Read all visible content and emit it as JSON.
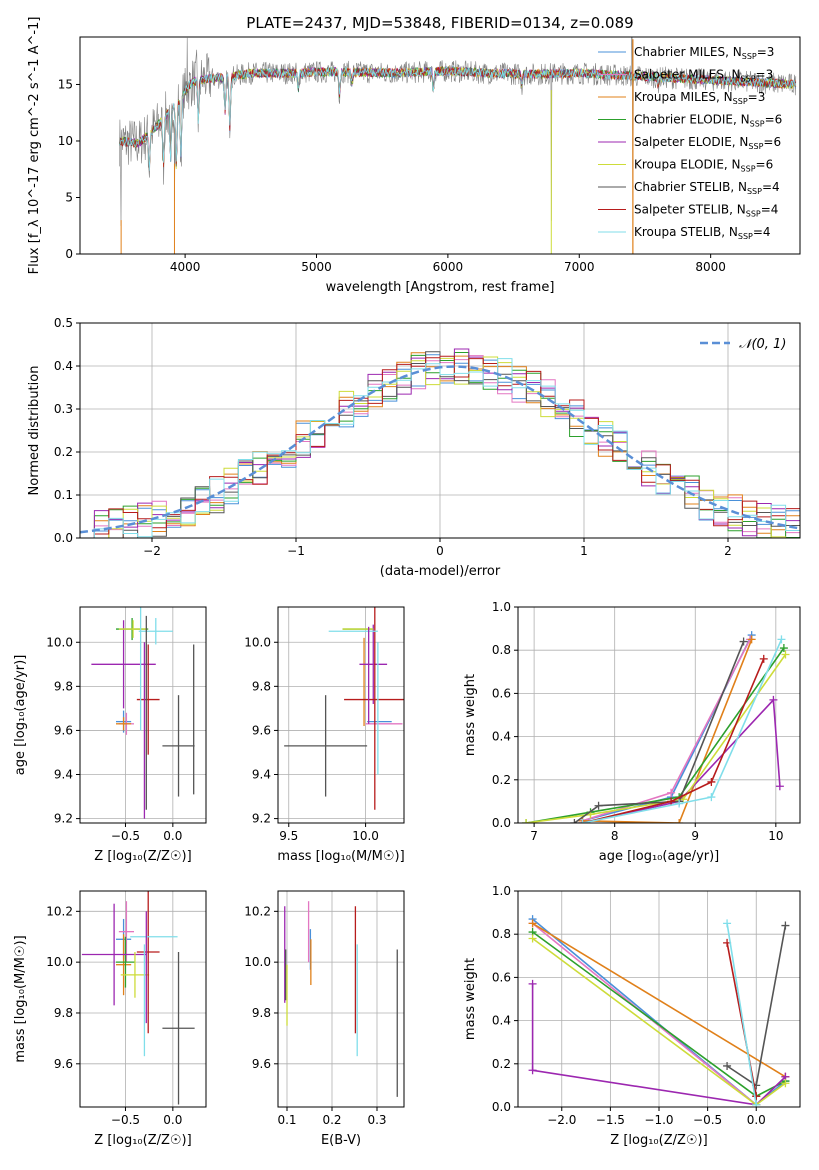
{
  "figure": {
    "title": "PLATE=2437, MJD=53848, FIBERID=0134, z=0.089"
  },
  "colors": {
    "Chabrier MILES": "#4a90d9",
    "Salpeter MILES": "#e377c2",
    "Kroupa MILES": "#e0801a",
    "Chabrier ELODIE": "#2ca02c",
    "Salpeter ELODIE": "#9c27b0",
    "Kroupa ELODIE": "#cddc39",
    "Chabrier STELIB": "#555555",
    "Salpeter STELIB": "#b71c1c",
    "Kroupa STELIB": "#80deea",
    "data": "#808080",
    "gaussian": "#5a8fd6"
  },
  "chart_data": [
    {
      "id": "spectrum",
      "type": "line",
      "title": "PLATE=2437, MJD=53848, FIBERID=0134, z=0.089",
      "xlabel": "wavelength [Angstrom, rest frame]",
      "ylabel": "Flux [f_λ 10^-17 erg cm^-2 s^-1 A^-1]",
      "xlim": [
        3200,
        8680
      ],
      "ylim": [
        0,
        19.2
      ],
      "xticks": [
        "4000",
        "5000",
        "6000",
        "7000",
        "8000"
      ],
      "yticks": [
        "0",
        "5",
        "10",
        "15"
      ],
      "grid": false,
      "legend_position": "right",
      "legend": [
        {
          "name": "Chabrier MILES",
          "nssp": "N",
          "sub": "SSP",
          "val": "=3"
        },
        {
          "name": "Salpeter MILES",
          "nssp": "N",
          "sub": "SSP",
          "val": "=3"
        },
        {
          "name": "Kroupa MILES",
          "nssp": "N",
          "sub": "SSP",
          "val": "=3"
        },
        {
          "name": "Chabrier ELODIE",
          "nssp": "N",
          "sub": "SSP",
          "val": "=6"
        },
        {
          "name": "Salpeter ELODIE",
          "nssp": "N",
          "sub": "SSP",
          "val": "=6"
        },
        {
          "name": "Kroupa ELODIE",
          "nssp": "N",
          "sub": "SSP",
          "val": "=6"
        },
        {
          "name": "Chabrier STELIB",
          "nssp": "N",
          "sub": "SSP",
          "val": "=4"
        },
        {
          "name": "Salpeter STELIB",
          "nssp": "N",
          "sub": "SSP",
          "val": "=4"
        },
        {
          "name": "Kroupa STELIB",
          "nssp": "N",
          "sub": "SSP",
          "val": "=4"
        }
      ],
      "continuum": [
        [
          3500,
          10
        ],
        [
          3650,
          9.8
        ],
        [
          3800,
          11.5
        ],
        [
          3950,
          13.5
        ],
        [
          4050,
          15.2
        ],
        [
          4150,
          15.5
        ],
        [
          4300,
          15.6
        ],
        [
          4500,
          16.0
        ],
        [
          4800,
          16.0
        ],
        [
          5000,
          16.1
        ],
        [
          5300,
          16.1
        ],
        [
          5600,
          16.0
        ],
        [
          6000,
          16.2
        ],
        [
          6300,
          16.0
        ],
        [
          6600,
          15.9
        ],
        [
          7000,
          16.0
        ],
        [
          7500,
          15.7
        ],
        [
          8000,
          15.4
        ],
        [
          8500,
          15.1
        ],
        [
          8650,
          15.0
        ]
      ],
      "absorptions": [
        [
          3727,
          -3.0
        ],
        [
          3835,
          -4.0
        ],
        [
          3889,
          -4.5
        ],
        [
          3933,
          -5.5
        ],
        [
          3968,
          -5.0
        ],
        [
          4101,
          -3.5
        ],
        [
          4304,
          -3.0
        ],
        [
          4340,
          -4.5
        ],
        [
          4861,
          -1.5
        ],
        [
          5175,
          -2.0
        ],
        [
          5270,
          -1.0
        ],
        [
          5890,
          -1.5
        ],
        [
          6563,
          -1.0
        ],
        [
          7600,
          -0.6
        ]
      ],
      "spikes": [
        [
          3513,
          -7.5
        ],
        [
          3919,
          -8.0
        ],
        [
          4016,
          4.5
        ],
        [
          4087,
          3.0
        ],
        [
          6787,
          -13.0
        ],
        [
          7408,
          -14.0
        ],
        [
          7400,
          6.0
        ]
      ]
    },
    {
      "id": "residuals",
      "type": "histogram",
      "xlabel": "(data-model)/error",
      "ylabel": "Normed distribution",
      "xlim": [
        -2.5,
        2.5
      ],
      "ylim": [
        0,
        0.5
      ],
      "xticks": [
        "−2",
        "−1",
        "0",
        "1",
        "2"
      ],
      "yticks": [
        "0.0",
        "0.1",
        "0.2",
        "0.3",
        "0.4",
        "0.5"
      ],
      "grid": true,
      "legend": "𝒩(0, 1)",
      "legend_position": "top-right",
      "bin_width": 0.1,
      "gaussian": {
        "mean": 0.1,
        "sigma": 1.0
      }
    },
    {
      "id": "age-vs-z",
      "type": "errorbar",
      "xlabel": "Z [log₁₀(Z/Z☉)]",
      "ylabel": "age  [log₁₀(age/yr)]",
      "xlim": [
        -0.98,
        0.35
      ],
      "ylim": [
        9.18,
        10.16
      ],
      "xticks": [
        "−0.5",
        "0.0"
      ],
      "xtick_values": [
        -0.5,
        0.0
      ],
      "yticks": [
        "9.2",
        "9.4",
        "9.6",
        "9.8",
        "10.0"
      ],
      "ytick_values": [
        9.2,
        9.4,
        9.6,
        9.8,
        10.0
      ],
      "grid": true,
      "points": [
        {
          "s": "Chabrier MILES",
          "x": -0.52,
          "xe": 0.08,
          "y": 9.64,
          "ye": 0.05
        },
        {
          "s": "Salpeter MILES",
          "x": -0.49,
          "xe": 0.08,
          "y": 9.63,
          "ye": 0.05
        },
        {
          "s": "Kroupa MILES",
          "x": -0.52,
          "xe": 0.08,
          "y": 9.63,
          "ye": 0.03
        },
        {
          "s": "Chabrier ELODIE",
          "x": -0.43,
          "xe": 0.17,
          "y": 10.06,
          "ye": 0.05
        },
        {
          "s": "Salpeter ELODIE",
          "x": -0.52,
          "xe": 0.34,
          "y": 9.9,
          "ye": 0.2
        },
        {
          "s": "Kroupa ELODIE",
          "x": -0.42,
          "xe": 0.15,
          "y": 10.06,
          "ye": 0.04
        },
        {
          "s": "Chabrier STELIB",
          "x": 0.06,
          "xe": 0.17,
          "y": 9.53,
          "ye": 0.23
        },
        {
          "s": "Salpeter STELIB",
          "x": -0.26,
          "xe": 0.12,
          "y": 9.74,
          "ye": 0.25
        },
        {
          "s": "Kroupa STELIB",
          "x": -0.18,
          "xe": 0.18,
          "y": 10.05,
          "ye": 0.06
        },
        {
          "s": "Chabrier STELIB",
          "x": -0.28,
          "xe": 0.0,
          "y": 9.68,
          "ye": 0.44
        },
        {
          "s": "Salpeter ELODIE",
          "x": -0.3,
          "xe": 0.0,
          "y": 9.6,
          "ye": 0.4
        },
        {
          "s": "Kroupa STELIB",
          "x": -0.34,
          "xe": 0.0,
          "y": 9.9,
          "ye": 0.3
        },
        {
          "s": "Chabrier STELIB",
          "x": 0.22,
          "xe": 0.0,
          "y": 9.65,
          "ye": 0.34
        }
      ]
    },
    {
      "id": "age-vs-mass",
      "type": "errorbar",
      "xlabel": "mass [log₁₀(M/M☉)]",
      "ylabel": "",
      "xlim": [
        9.43,
        10.25
      ],
      "ylim": [
        9.18,
        10.16
      ],
      "xticks": [
        "9.5",
        "10.0"
      ],
      "xtick_values": [
        9.5,
        10.0
      ],
      "yticks": [
        "9.2",
        "9.4",
        "9.6",
        "9.8",
        "10.0"
      ],
      "ytick_values": [
        9.2,
        9.4,
        9.6,
        9.8,
        10.0
      ],
      "grid": true,
      "points": [
        {
          "s": "Chabrier MILES",
          "x": 10.09,
          "xe": 0.08,
          "y": 9.64,
          "ye": 0.0
        },
        {
          "s": "Salpeter MILES",
          "x": 10.12,
          "xe": 0.12,
          "y": 9.63,
          "ye": 0.0
        },
        {
          "s": "Kroupa MILES",
          "x": 9.99,
          "xe": 0.0,
          "y": 9.82,
          "ye": 0.2
        },
        {
          "s": "Chabrier ELODIE",
          "x": 9.95,
          "xe": 0.1,
          "y": 10.06,
          "ye": 0.0
        },
        {
          "s": "Salpeter ELODIE",
          "x": 10.05,
          "xe": 0.09,
          "y": 9.9,
          "ye": 0.18
        },
        {
          "s": "Kroupa ELODIE",
          "x": 9.95,
          "xe": 0.1,
          "y": 10.06,
          "ye": 0.0
        },
        {
          "s": "Chabrier STELIB",
          "x": 9.74,
          "xe": 0.27,
          "y": 9.53,
          "ye": 0.23
        },
        {
          "s": "Salpeter STELIB",
          "x": 10.06,
          "xe": 0.2,
          "y": 9.74,
          "ye": 0.5
        },
        {
          "s": "Kroupa STELIB",
          "x": 9.92,
          "xe": 0.16,
          "y": 10.05,
          "ye": 0.0
        },
        {
          "s": "Salpeter ELODIE",
          "x": 10.02,
          "xe": 0.0,
          "y": 9.85,
          "ye": 0.22
        },
        {
          "s": "Kroupa STELIB",
          "x": 10.08,
          "xe": 0.0,
          "y": 9.7,
          "ye": 0.3
        }
      ]
    },
    {
      "id": "mw-vs-age",
      "type": "line",
      "xlabel": "age  [log₁₀(age/yr)]",
      "ylabel": "mass weight",
      "xlim": [
        6.8,
        10.3
      ],
      "ylim": [
        0,
        1.0
      ],
      "xticks": [
        "7",
        "8",
        "9",
        "10"
      ],
      "xtick_values": [
        7,
        8,
        9,
        10
      ],
      "yticks": [
        "0.0",
        "0.2",
        "0.4",
        "0.6",
        "0.8",
        "1.0"
      ],
      "ytick_values": [
        0,
        0.2,
        0.4,
        0.6,
        0.8,
        1.0
      ],
      "grid": true,
      "series": [
        {
          "name": "Chabrier MILES",
          "x": [
            7.6,
            8.7,
            9.7
          ],
          "y": [
            0.01,
            0.12,
            0.87
          ]
        },
        {
          "name": "Salpeter MILES",
          "x": [
            7.6,
            8.7,
            9.68
          ],
          "y": [
            0.01,
            0.14,
            0.85
          ]
        },
        {
          "name": "Kroupa MILES",
          "x": [
            7.6,
            8.8,
            9.7
          ],
          "y": [
            0.01,
            0.0,
            0.85
          ]
        },
        {
          "name": "Chabrier ELODIE",
          "x": [
            6.9,
            7.7,
            8.8,
            10.1
          ],
          "y": [
            0.0,
            0.05,
            0.12,
            0.81
          ]
        },
        {
          "name": "Salpeter ELODIE",
          "x": [
            7.6,
            8.8,
            9.97,
            10.05
          ],
          "y": [
            0.0,
            0.1,
            0.57,
            0.17
          ]
        },
        {
          "name": "Kroupa ELODIE",
          "x": [
            6.9,
            7.7,
            8.85,
            10.12
          ],
          "y": [
            0.0,
            0.04,
            0.11,
            0.78
          ]
        },
        {
          "name": "Chabrier STELIB",
          "x": [
            7.5,
            7.8,
            8.8,
            9.6
          ],
          "y": [
            0.0,
            0.08,
            0.1,
            0.84
          ]
        },
        {
          "name": "Salpeter STELIB",
          "x": [
            7.6,
            8.7,
            9.2,
            9.85
          ],
          "y": [
            0.0,
            0.1,
            0.19,
            0.76
          ]
        },
        {
          "name": "Kroupa STELIB",
          "x": [
            7.6,
            8.8,
            9.2,
            10.07
          ],
          "y": [
            0.0,
            0.09,
            0.12,
            0.85
          ]
        }
      ]
    },
    {
      "id": "mass-vs-z",
      "type": "errorbar",
      "xlabel": "Z [log₁₀(Z/Z☉)]",
      "ylabel": "mass [log₁₀(M/M☉)]",
      "xlim": [
        -0.98,
        0.35
      ],
      "ylim": [
        9.43,
        10.28
      ],
      "xticks": [
        "−0.5",
        "0.0"
      ],
      "xtick_values": [
        -0.5,
        0.0
      ],
      "yticks": [
        "9.6",
        "9.8",
        "10.0",
        "10.2"
      ],
      "ytick_values": [
        9.6,
        9.8,
        10.0,
        10.2
      ],
      "grid": true,
      "points": [
        {
          "s": "Chabrier MILES",
          "x": -0.52,
          "xe": 0.08,
          "y": 10.09,
          "ye": 0.08
        },
        {
          "s": "Salpeter MILES",
          "x": -0.49,
          "xe": 0.08,
          "y": 10.12,
          "ye": 0.12
        },
        {
          "s": "Kroupa MILES",
          "x": -0.52,
          "xe": 0.08,
          "y": 9.99,
          "ye": 0.12
        },
        {
          "s": "Chabrier ELODIE",
          "x": -0.5,
          "xe": 0.1,
          "y": 10.0,
          "ye": 0.1
        },
        {
          "s": "Salpeter ELODIE",
          "x": -0.62,
          "xe": 0.34,
          "y": 10.03,
          "ye": 0.2
        },
        {
          "s": "Kroupa ELODIE",
          "x": -0.4,
          "xe": 0.15,
          "y": 9.95,
          "ye": 0.09
        },
        {
          "s": "Chabrier STELIB",
          "x": 0.06,
          "xe": 0.17,
          "y": 9.74,
          "ye": 0.3
        },
        {
          "s": "Salpeter STELIB",
          "x": -0.26,
          "xe": 0.12,
          "y": 10.04,
          "ye": 0.32
        },
        {
          "s": "Kroupa STELIB",
          "x": -0.2,
          "xe": 0.25,
          "y": 10.1,
          "ye": 0.0
        },
        {
          "s": "Salpeter ELODIE",
          "x": -0.28,
          "xe": 0.0,
          "y": 9.98,
          "ye": 0.22
        },
        {
          "s": "Kroupa STELIB",
          "x": -0.3,
          "xe": 0.0,
          "y": 9.85,
          "ye": 0.22
        }
      ]
    },
    {
      "id": "mass-vs-ebv",
      "type": "errorbar",
      "xlabel": "E(B-V)",
      "ylabel": "",
      "xlim": [
        0.08,
        0.36
      ],
      "ylim": [
        9.43,
        10.28
      ],
      "xticks": [
        "0.1",
        "0.2",
        "0.3"
      ],
      "xtick_values": [
        0.1,
        0.2,
        0.3
      ],
      "yticks": [
        "9.6",
        "9.8",
        "10.0",
        "10.2"
      ],
      "ytick_values": [
        9.6,
        9.8,
        10.0,
        10.2
      ],
      "grid": true,
      "points": [
        {
          "s": "Salpeter ELODIE",
          "x": 0.095,
          "xe": 0.0,
          "y": 10.03,
          "ye": 0.19
        },
        {
          "s": "Chabrier STELIB",
          "x": 0.097,
          "xe": 0.0,
          "y": 9.95,
          "ye": 0.1
        },
        {
          "s": "Kroupa ELODIE",
          "x": 0.1,
          "xe": 0.0,
          "y": 9.87,
          "ye": 0.12
        },
        {
          "s": "Salpeter MILES",
          "x": 0.148,
          "xe": 0.0,
          "y": 10.12,
          "ye": 0.12
        },
        {
          "s": "Chabrier MILES",
          "x": 0.152,
          "xe": 0.0,
          "y": 10.05,
          "ye": 0.08
        },
        {
          "s": "Kroupa MILES",
          "x": 0.153,
          "xe": 0.0,
          "y": 10.0,
          "ye": 0.09
        },
        {
          "s": "Salpeter STELIB",
          "x": 0.252,
          "xe": 0.0,
          "y": 9.97,
          "ye": 0.25
        },
        {
          "s": "Kroupa STELIB",
          "x": 0.256,
          "xe": 0.0,
          "y": 9.85,
          "ye": 0.22
        },
        {
          "s": "Chabrier STELIB",
          "x": 0.345,
          "xe": 0.0,
          "y": 9.76,
          "ye": 0.29
        }
      ]
    },
    {
      "id": "mw-vs-z",
      "type": "line",
      "xlabel": "Z [log₁₀(Z/Z☉)]",
      "ylabel": "mass weight",
      "xlim": [
        -2.45,
        0.45
      ],
      "ylim": [
        0,
        1.0
      ],
      "xticks": [
        "−2.0",
        "−1.5",
        "−1.0",
        "−0.5",
        "0.0"
      ],
      "xtick_values": [
        -2.0,
        -1.5,
        -1.0,
        -0.5,
        0.0
      ],
      "yticks": [
        "0.0",
        "0.2",
        "0.4",
        "0.6",
        "0.8",
        "1.0"
      ],
      "ytick_values": [
        0,
        0.2,
        0.4,
        0.6,
        0.8,
        1.0
      ],
      "grid": true,
      "series": [
        {
          "name": "Chabrier MILES",
          "x": [
            -2.3,
            0.0,
            0.3
          ],
          "y": [
            0.87,
            0.01,
            0.12
          ]
        },
        {
          "name": "Salpeter MILES",
          "x": [
            -2.3,
            0.0,
            0.3
          ],
          "y": [
            0.85,
            0.01,
            0.14
          ]
        },
        {
          "name": "Kroupa MILES",
          "x": [
            -2.3,
            0.3
          ],
          "y": [
            0.85,
            0.14
          ]
        },
        {
          "name": "Chabrier ELODIE",
          "x": [
            -2.3,
            0.0,
            0.3
          ],
          "y": [
            0.81,
            0.05,
            0.12
          ]
        },
        {
          "name": "Salpeter ELODIE",
          "x": [
            -2.3,
            -2.3,
            0.0,
            0.3
          ],
          "y": [
            0.57,
            0.17,
            0.01,
            0.14
          ]
        },
        {
          "name": "Kroupa ELODIE",
          "x": [
            -2.3,
            0.0,
            0.3
          ],
          "y": [
            0.78,
            0.01,
            0.11
          ]
        },
        {
          "name": "Chabrier STELIB",
          "x": [
            -0.3,
            0.0,
            0.3
          ],
          "y": [
            0.19,
            0.1,
            0.84
          ]
        },
        {
          "name": "Salpeter STELIB",
          "x": [
            -0.3,
            0.0
          ],
          "y": [
            0.76,
            0.05
          ]
        },
        {
          "name": "Kroupa STELIB",
          "x": [
            -0.3,
            0.0
          ],
          "y": [
            0.85,
            0.01
          ]
        }
      ]
    }
  ]
}
